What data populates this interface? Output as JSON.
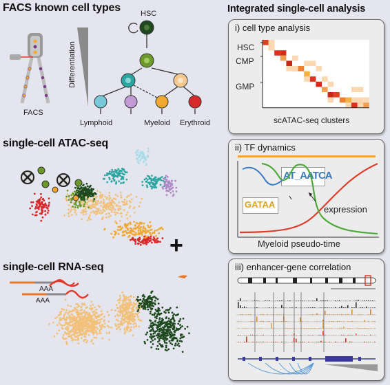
{
  "left": {
    "facs_title": "FACS known cell types",
    "facs_label": "FACS",
    "differentiation_label": "Differentiation",
    "hsc_label": "HSC",
    "lineages": [
      "Lymphoid",
      "Myeloid",
      "Erythroid"
    ],
    "atac_title": "single-cell ATAC-seq",
    "rna_title": "single-cell RNA-seq",
    "aaa_label": "AAA",
    "plus_sign": "+"
  },
  "right": {
    "title": "Integrated single-cell analysis",
    "panel1": {
      "title": "i) cell type analysis",
      "row_labels": [
        "HSC",
        "CMP",
        "GMP"
      ],
      "xlabel": "scATAC-seq clusters"
    },
    "panel2": {
      "title": "ii) TF dynamics",
      "motif1": "AT_AATCA",
      "motif2": "GATAA",
      "expression_label": "expression",
      "xlabel": "Myeloid pseudo-time"
    },
    "panel3": {
      "title": "iii) enhancer-gene correlation"
    }
  },
  "colors": {
    "background": "#e5e5ef",
    "hsc": "#1f4a1f",
    "cmp": "#6b9a2a",
    "lymphoid": "#2aa5a0",
    "myeloid": "#f0a830",
    "erythroid": "#d82a2a",
    "pdc": "#b08ac8",
    "light_cyan": "#a8dcea",
    "orange_light": "#f2c078",
    "green_curve": "#4faa3c",
    "blue_curve": "#3a78c8",
    "red_curve": "#e23a2a"
  }
}
